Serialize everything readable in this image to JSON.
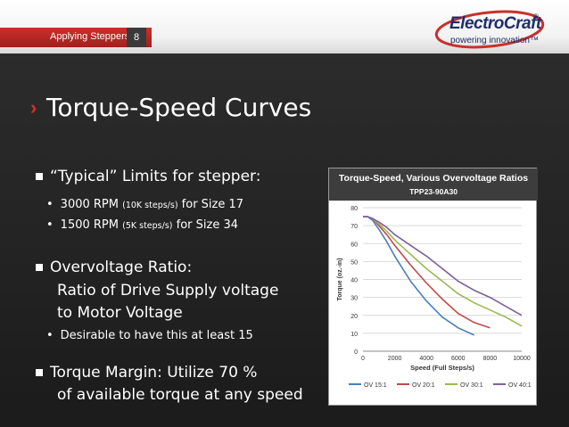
{
  "header": {
    "section": "Applying Steppers",
    "page_number": "8",
    "logo_name": "ElectroCraft",
    "logo_registered": "®",
    "logo_tagline": "powering innovation™"
  },
  "slide": {
    "title": "Torque-Speed Curves",
    "bullets": [
      {
        "text": "“Typical” Limits for stepper:",
        "sub": [
          {
            "main": "3000 RPM",
            "small": "(10K steps/s)",
            "rest": "for Size 17"
          },
          {
            "main": "1500 RPM",
            "small": "(5K steps/s)",
            "rest": "for Size 34"
          }
        ]
      },
      {
        "text": "Overvoltage Ratio:",
        "cont": [
          "Ratio of Drive Supply voltage",
          "to Motor Voltage"
        ],
        "sub": [
          {
            "main": "Desirable to have this at least 15"
          }
        ]
      },
      {
        "text": "Torque Margin: Utilize 70 %",
        "cont": [
          "of available torque at any speed"
        ]
      }
    ]
  },
  "chart_data": {
    "type": "line",
    "title": "Torque-Speed, Various Overvoltage Ratios",
    "subtitle": "TPP23-90A30",
    "xlabel": "Speed (Full Steps/s)",
    "ylabel": "Torque (oz.-in)",
    "xlim": [
      0,
      10000
    ],
    "ylim": [
      0,
      80
    ],
    "xticks": [
      0,
      2000,
      4000,
      6000,
      8000,
      10000
    ],
    "yticks": [
      0,
      10,
      20,
      30,
      40,
      50,
      60,
      70,
      80
    ],
    "grid": "horizontal",
    "legend_position": "bottom",
    "series": [
      {
        "name": "OV 15:1",
        "color": "#4a7ebb",
        "x": [
          0,
          300,
          600,
          1000,
          1500,
          2000,
          2500,
          3000,
          4000,
          5000,
          6000,
          7000
        ],
        "y": [
          75,
          75,
          73,
          68,
          61,
          53,
          46,
          39,
          28,
          19,
          13,
          9
        ]
      },
      {
        "name": "OV 20:1",
        "color": "#be4b48",
        "x": [
          0,
          300,
          600,
          1000,
          1500,
          2000,
          3000,
          4000,
          5000,
          6000,
          7000,
          8000
        ],
        "y": [
          75,
          75,
          74,
          70,
          65,
          59,
          48,
          38,
          29,
          21,
          16,
          13
        ]
      },
      {
        "name": "OV 30:1",
        "color": "#98b954",
        "x": [
          0,
          300,
          600,
          1000,
          1500,
          2000,
          3000,
          4000,
          5000,
          6000,
          7000,
          8000,
          9000,
          10000
        ],
        "y": [
          75,
          75,
          74,
          71,
          67,
          62,
          54,
          46,
          39,
          32,
          27,
          23,
          19,
          14
        ]
      },
      {
        "name": "OV 40:1",
        "color": "#7d60a0",
        "x": [
          0,
          300,
          600,
          1000,
          1500,
          2000,
          3000,
          4000,
          5000,
          6000,
          7000,
          8000,
          9000,
          10000
        ],
        "y": [
          75,
          75,
          74,
          72,
          69,
          65,
          59,
          53,
          46,
          39,
          34,
          30,
          25,
          20
        ]
      }
    ]
  }
}
